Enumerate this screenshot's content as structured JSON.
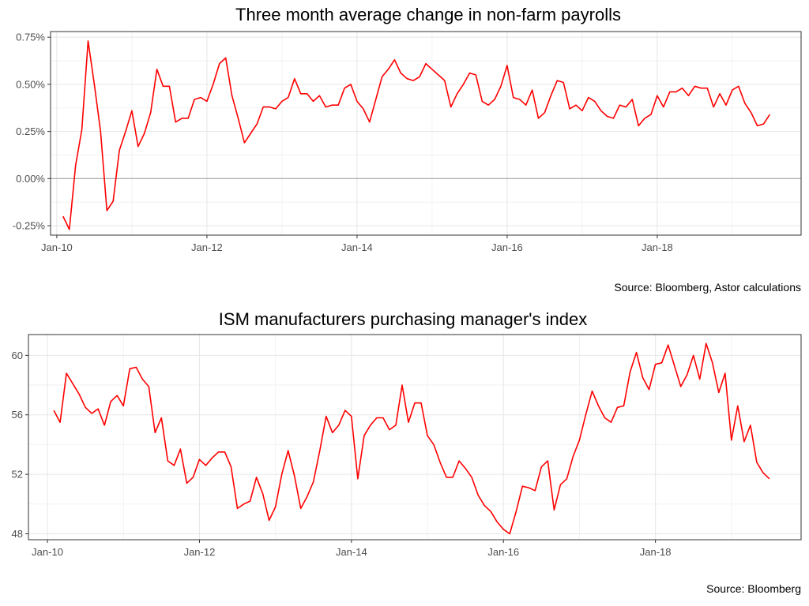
{
  "colors": {
    "line": "#ff0000",
    "grid_major": "#e6e6e6",
    "grid_minor": "#f2f2f2",
    "zero_line": "#a6a6a6",
    "panel_border": "#333333",
    "tick_text": "#4d4d4d"
  },
  "chart_data": [
    {
      "type": "line",
      "title": "Three month average change in non-farm payrolls",
      "source": "Source: Bloomberg, Astor calculations",
      "xlabel": "",
      "ylabel": "",
      "xlim": [
        "2009-12",
        "2019-12"
      ],
      "ylim": [
        -0.3,
        0.78
      ],
      "x_ticks": [
        "2010-01",
        "2012-01",
        "2014-01",
        "2016-01",
        "2018-01"
      ],
      "x_tick_labels": [
        "Jan-10",
        "Jan-12",
        "Jan-14",
        "Jan-16",
        "Jan-18"
      ],
      "y_ticks": [
        -0.25,
        0,
        0.25,
        0.5,
        0.75
      ],
      "y_tick_labels": [
        "-0.25%",
        "0.00%",
        "0.25%",
        "0.50%",
        "0.75%"
      ],
      "reference_line": 0,
      "grid": true,
      "series": [
        {
          "start": "2010-02",
          "frequency": "monthly",
          "values": [
            -0.2,
            -0.27,
            0.07,
            0.26,
            0.73,
            0.5,
            0.25,
            -0.17,
            -0.12,
            0.15,
            0.25,
            0.36,
            0.17,
            0.24,
            0.35,
            0.58,
            0.49,
            0.49,
            0.3,
            0.32,
            0.32,
            0.42,
            0.43,
            0.41,
            0.5,
            0.61,
            0.64,
            0.44,
            0.32,
            0.19,
            0.24,
            0.29,
            0.38,
            0.38,
            0.37,
            0.41,
            0.43,
            0.53,
            0.45,
            0.45,
            0.41,
            0.44,
            0.38,
            0.39,
            0.39,
            0.48,
            0.5,
            0.41,
            0.37,
            0.3,
            0.42,
            0.54,
            0.58,
            0.63,
            0.56,
            0.53,
            0.52,
            0.54,
            0.61,
            0.58,
            0.55,
            0.52,
            0.38,
            0.45,
            0.5,
            0.56,
            0.55,
            0.41,
            0.39,
            0.42,
            0.49,
            0.6,
            0.43,
            0.42,
            0.39,
            0.47,
            0.32,
            0.35,
            0.44,
            0.52,
            0.51,
            0.37,
            0.39,
            0.36,
            0.43,
            0.41,
            0.36,
            0.33,
            0.32,
            0.39,
            0.38,
            0.42,
            0.28,
            0.32,
            0.34,
            0.44,
            0.38,
            0.46,
            0.46,
            0.48,
            0.44,
            0.49,
            0.48,
            0.48,
            0.38,
            0.45,
            0.39,
            0.47,
            0.49,
            0.4,
            0.35,
            0.28,
            0.29,
            0.34
          ]
        }
      ]
    },
    {
      "type": "line",
      "title": "ISM manufacturers purchasing manager's index",
      "source": "Source: Bloomberg",
      "xlabel": "",
      "ylabel": "",
      "xlim": [
        "2009-10",
        "2019-12"
      ],
      "ylim": [
        47.6,
        61.4
      ],
      "x_ticks": [
        "2010-01",
        "2012-01",
        "2014-01",
        "2016-01",
        "2018-01"
      ],
      "x_tick_labels": [
        "Jan-10",
        "Jan-12",
        "Jan-14",
        "Jan-16",
        "Jan-18"
      ],
      "y_ticks": [
        48,
        52,
        56,
        60
      ],
      "y_tick_labels": [
        "48",
        "52",
        "56",
        "60"
      ],
      "grid": true,
      "series": [
        {
          "start": "2010-02",
          "frequency": "monthly",
          "values": [
            56.3,
            55.5,
            58.8,
            58.1,
            57.4,
            56.5,
            56.1,
            56.4,
            55.3,
            56.9,
            57.3,
            56.6,
            59.1,
            59.2,
            58.4,
            57.9,
            54.8,
            55.8,
            52.9,
            52.6,
            53.7,
            51.4,
            51.8,
            53.0,
            52.6,
            53.1,
            53.5,
            53.5,
            52.5,
            49.7,
            50.0,
            50.2,
            51.8,
            50.7,
            48.9,
            49.8,
            52.0,
            53.6,
            51.9,
            49.7,
            50.5,
            51.5,
            53.6,
            55.9,
            54.8,
            55.3,
            56.3,
            55.9,
            51.7,
            54.6,
            55.3,
            55.8,
            55.8,
            55.0,
            55.3,
            58.0,
            55.5,
            56.8,
            56.8,
            54.6,
            54.0,
            52.8,
            51.8,
            51.8,
            52.9,
            52.4,
            51.8,
            50.6,
            49.9,
            49.5,
            48.8,
            48.3,
            48.0,
            49.5,
            51.2,
            51.1,
            50.9,
            52.5,
            52.9,
            49.6,
            51.3,
            51.7,
            53.2,
            54.3,
            56.0,
            57.6,
            56.6,
            55.8,
            55.5,
            56.5,
            56.6,
            58.9,
            60.2,
            58.5,
            57.7,
            59.4,
            59.5,
            60.7,
            59.3,
            57.9,
            58.7,
            60.0,
            58.4,
            60.8,
            59.5,
            57.5,
            58.8,
            54.3,
            56.6,
            54.2,
            55.3,
            52.8,
            52.1,
            51.7
          ]
        }
      ]
    }
  ]
}
